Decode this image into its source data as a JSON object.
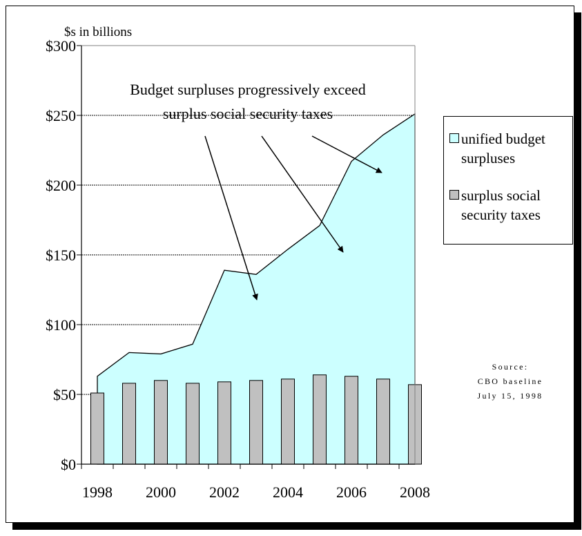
{
  "chart_data": {
    "type": "area",
    "units_label": "$s in billions",
    "x": [
      1998,
      1999,
      2000,
      2001,
      2002,
      2003,
      2004,
      2005,
      2006,
      2007,
      2008
    ],
    "x_tick_labels": [
      "1998",
      "2000",
      "2002",
      "2004",
      "2006",
      "2008"
    ],
    "y_tick_labels": [
      "$0",
      "$50",
      "$100",
      "$150",
      "$200",
      "$250",
      "$300"
    ],
    "ylim": [
      0,
      300
    ],
    "grid": true,
    "legend_placement": "right",
    "series": [
      {
        "name": "unified budget surpluses",
        "kind": "area",
        "color": "#ccffff",
        "values": [
          63,
          80,
          79,
          86,
          139,
          136,
          154,
          171,
          217,
          236,
          251
        ]
      },
      {
        "name": "surplus social security taxes",
        "kind": "bar",
        "color": "#c0c0c0",
        "values": [
          51,
          58,
          60,
          58,
          59,
          60,
          61,
          64,
          63,
          61,
          57
        ]
      }
    ],
    "annotation": {
      "lines": [
        "Budget surpluses progressively exceed",
        "surplus social security taxes"
      ]
    },
    "source": {
      "lines": [
        "Source:",
        "CBO baseline",
        "July 15, 1998"
      ]
    }
  }
}
